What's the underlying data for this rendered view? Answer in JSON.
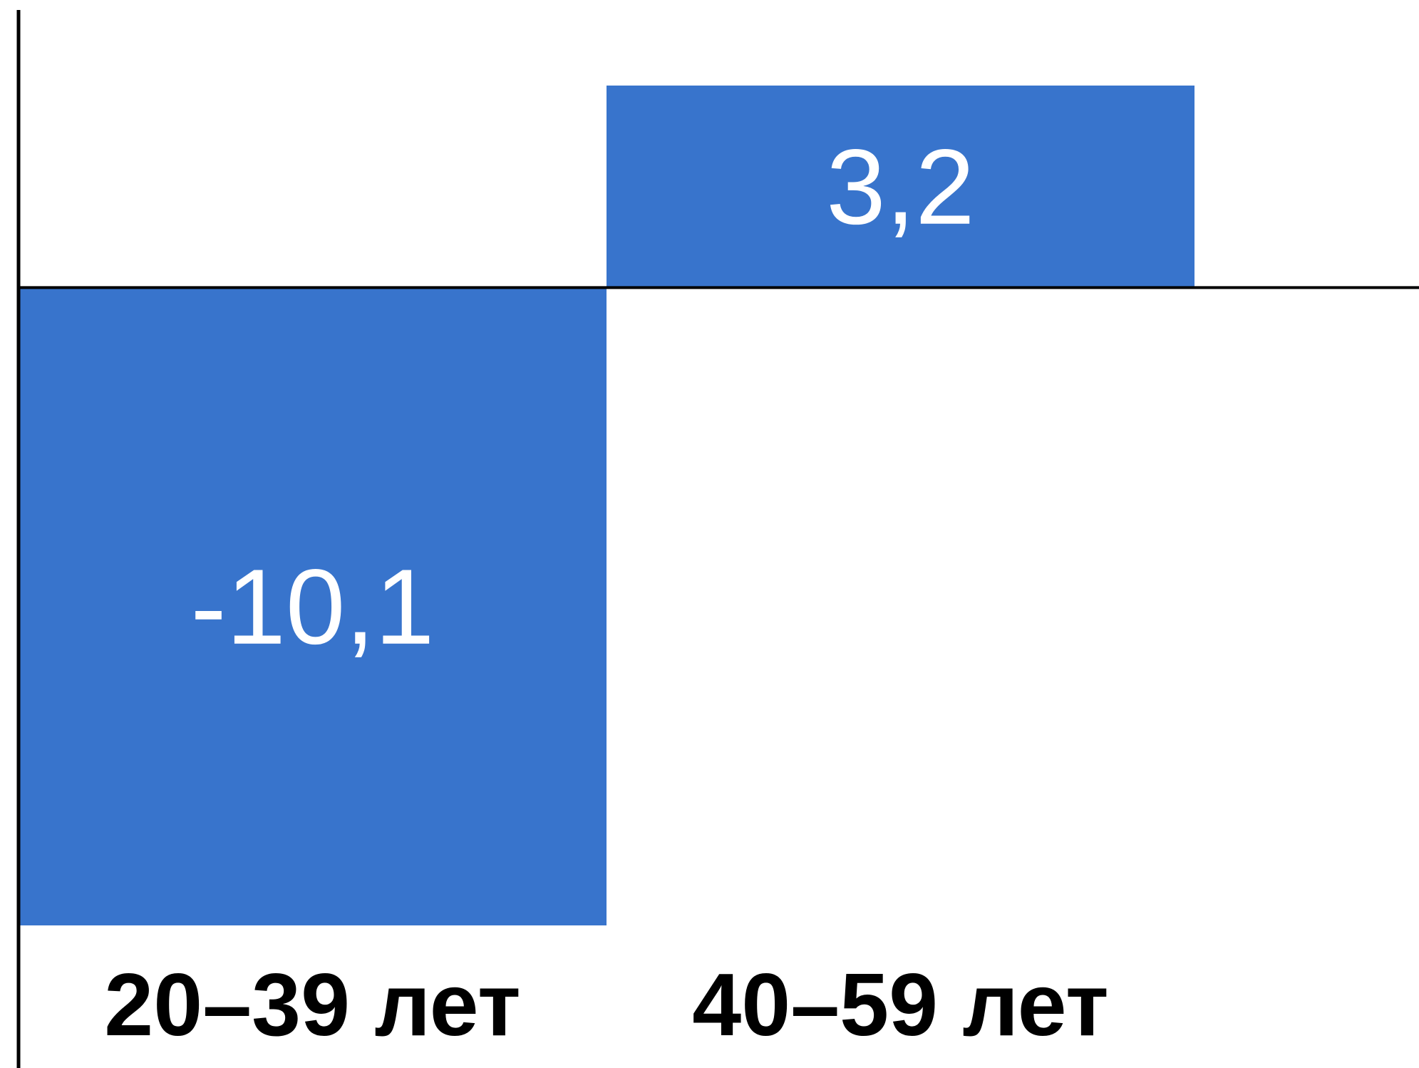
{
  "chart_data": {
    "type": "bar",
    "title": "",
    "xlabel": "",
    "ylabel": "",
    "categories": [
      "20–39 лет",
      "40–59 лет"
    ],
    "values": [
      -10.1,
      3.2
    ],
    "value_labels": [
      "-10,1",
      "3,2"
    ],
    "ylim": [
      -10.1,
      3.2
    ],
    "grid": false,
    "legend": "none",
    "colors": {
      "bar": "#3874cc",
      "bar_label": "#ffffff",
      "axis": "#000000",
      "category_label": "#000000"
    }
  }
}
